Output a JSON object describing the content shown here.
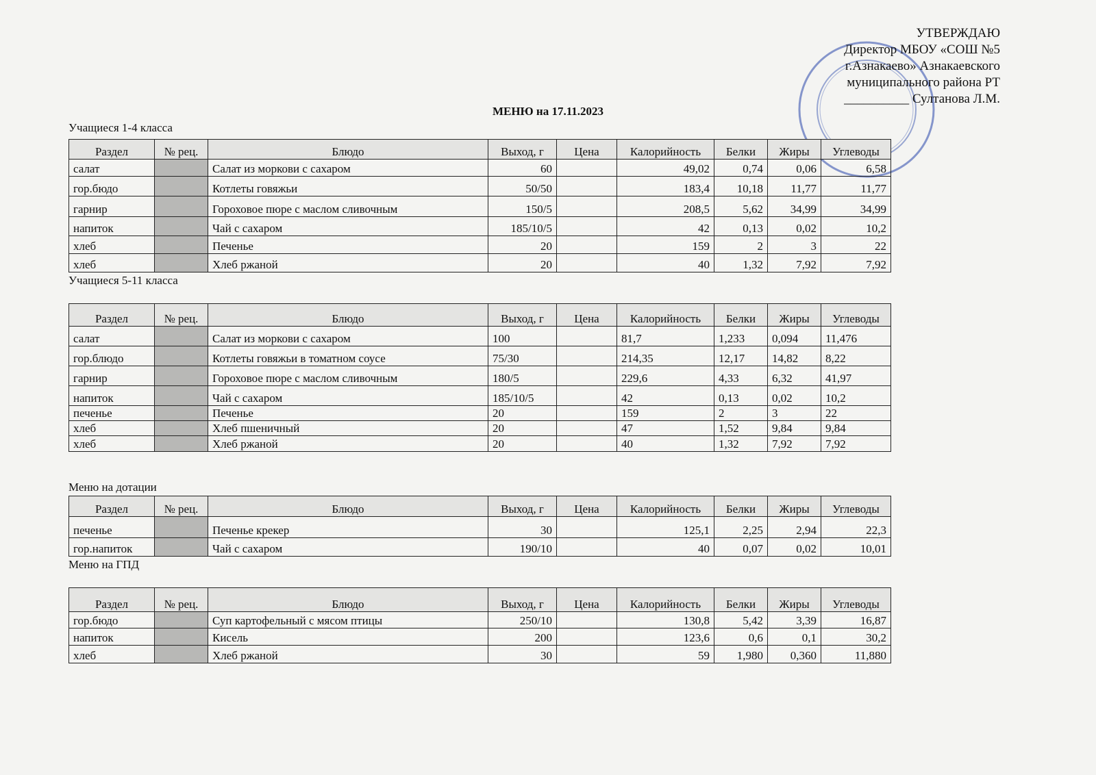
{
  "approval": [
    "УТВЕРЖДАЮ",
    "Директор  МБОУ «СОШ №5",
    "г.Азнакаево» Азнакаевского",
    "муниципального района РТ",
    "__________ Султанова Л.М."
  ],
  "title": "МЕНЮ на 17.11.2023",
  "tables": [
    {
      "caption": "Учащиеся 1-4 класса",
      "headers": [
        "Раздел",
        "№ рец.",
        "Блюдо",
        "Выход, г",
        "Цена",
        "Калорийность",
        "Белки",
        "Жиры",
        "Углеводы"
      ],
      "rows": [
        {
          "section": "салат",
          "dish": "Салат из моркови с сахаром",
          "yield": "60",
          "calories": "49,02",
          "protein": "0,74",
          "fat": "0,06",
          "carbs": "6,58"
        },
        {
          "section": "гор.бюдо",
          "dish": "Котлеты говяжьи",
          "yield": "50/50",
          "calories": "183,4",
          "protein": "10,18",
          "fat": "11,77",
          "carbs": "11,77"
        },
        {
          "section": "гарнир",
          "dish": "Гороховое пюре с маслом сливочным",
          "yield": "150/5",
          "calories": "208,5",
          "protein": "5,62",
          "fat": "34,99",
          "carbs": "34,99"
        },
        {
          "section": "напиток",
          "dish": "Чай с сахаром",
          "yield": "185/10/5",
          "calories": "42",
          "protein": "0,13",
          "fat": "0,02",
          "carbs": "10,2"
        },
        {
          "section": "хлеб",
          "dish": "Печенье",
          "yield": "20",
          "calories": "159",
          "protein": "2",
          "fat": "3",
          "carbs": "22"
        },
        {
          "section": "хлеб",
          "dish": "Хлеб ржаной",
          "yield": "20",
          "calories": "40",
          "protein": "1,32",
          "fat": "7,92",
          "carbs": "7,92"
        }
      ]
    },
    {
      "caption": "Учащиеся 5-11 класса",
      "headers": [
        "Раздел",
        "№ рец.",
        "Блюдо",
        "Выход, г",
        "Цена",
        "Калорийность",
        "Белки",
        "Жиры",
        "Углеводы"
      ],
      "rows": [
        {
          "section": "салат",
          "dish": "Салат из моркови с сахаром",
          "yield": "100",
          "calories": "81,7",
          "protein": "1,233",
          "fat": "0,094",
          "carbs": "11,476"
        },
        {
          "section": "гор.блюдо",
          "dish": "Котлеты говяжьи в томатном соусе",
          "yield": "75/30",
          "calories": "214,35",
          "protein": "12,17",
          "fat": "14,82",
          "carbs": "8,22"
        },
        {
          "section": "гарнир",
          "dish": "Гороховое пюре с маслом сливочным",
          "yield": "180/5",
          "calories": "229,6",
          "protein": "4,33",
          "fat": "6,32",
          "carbs": "41,97"
        },
        {
          "section": "напиток",
          "dish": "Чай с сахаром",
          "yield": "185/10/5",
          "calories": "42",
          "protein": "0,13",
          "fat": "0,02",
          "carbs": "10,2"
        },
        {
          "section": "печенье",
          "dish": "Печенье",
          "yield": "20",
          "calories": "159",
          "protein": "2",
          "fat": "3",
          "carbs": "22"
        },
        {
          "section": "хлеб",
          "dish": "Хлеб пшеничный",
          "yield": "20",
          "calories": "47",
          "protein": "1,52",
          "fat": "9,84",
          "carbs": "9,84"
        },
        {
          "section": "хлеб",
          "dish": "Хлеб ржаной",
          "yield": "20",
          "calories": "40",
          "protein": "1,32",
          "fat": "7,92",
          "carbs": "7,92"
        }
      ]
    },
    {
      "caption": "Меню на дотации",
      "headers": [
        "Раздел",
        "№ рец.",
        "Блюдо",
        "Выход, г",
        "Цена",
        "Калорийность",
        "Белки",
        "Жиры",
        "Углеводы"
      ],
      "rows": [
        {
          "section": "печенье",
          "dish": "Печенье крекер",
          "yield": "30",
          "calories": "125,1",
          "protein": "2,25",
          "fat": "2,94",
          "carbs": "22,3"
        },
        {
          "section": "гор.напиток",
          "dish": "Чай с сахаром",
          "yield": "190/10",
          "calories": "40",
          "protein": "0,07",
          "fat": "0,02",
          "carbs": "10,01"
        }
      ]
    },
    {
      "caption": "Меню на ГПД",
      "headers": [
        "Раздел",
        "№ рец.",
        "Блюдо",
        "Выход, г",
        "Цена",
        "Калорийность",
        "Белки",
        "Жиры",
        "Углеводы"
      ],
      "rows": [
        {
          "section": "гор.бюдо",
          "dish": "Суп картофельный с мясом птицы",
          "yield": "250/10",
          "calories": "130,8",
          "protein": "5,42",
          "fat": "3,39",
          "carbs": "16,87"
        },
        {
          "section": "напиток",
          "dish": "Кисель",
          "yield": "200",
          "calories": "123,6",
          "protein": "0,6",
          "fat": "0,1",
          "carbs": "30,2"
        },
        {
          "section": "хлеб",
          "dish": "Хлеб ржаной",
          "yield": "30",
          "calories": "59",
          "protein": "1,980",
          "fat": "0,360",
          "carbs": "11,880"
        }
      ]
    }
  ]
}
